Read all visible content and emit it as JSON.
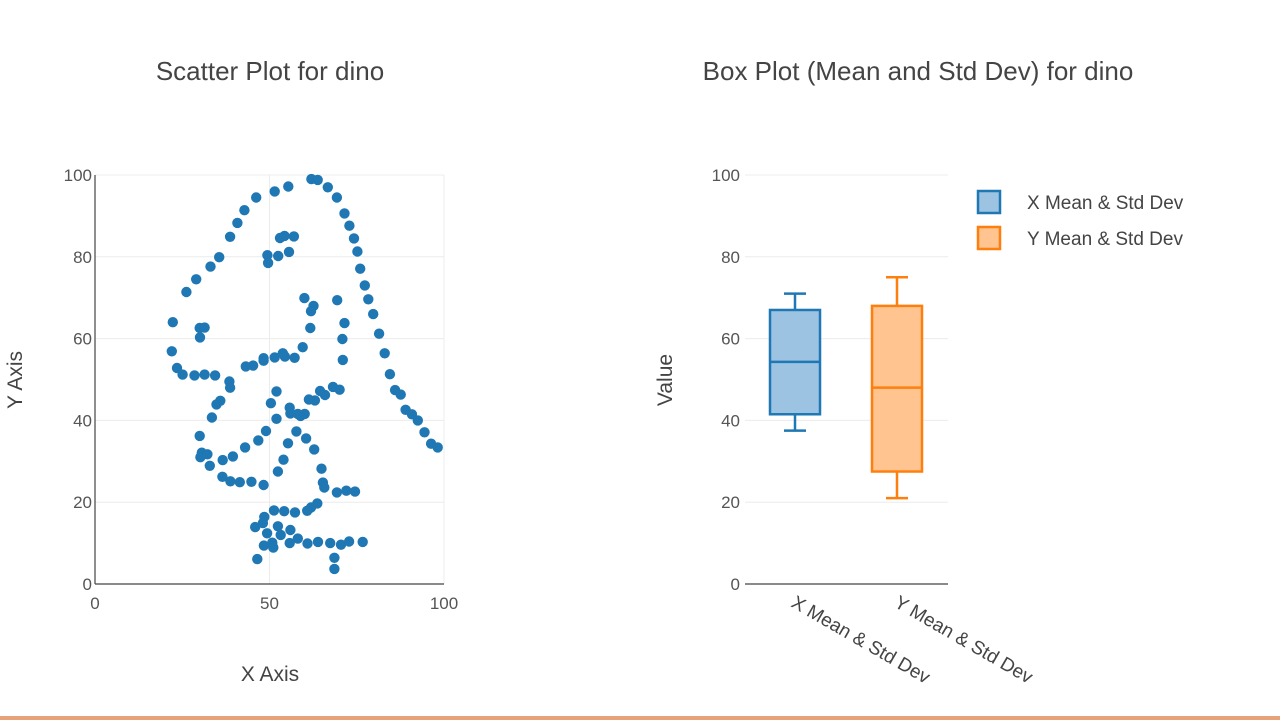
{
  "chart_data": [
    {
      "type": "scatter",
      "title": "Scatter Plot for dino",
      "xlabel": "X Axis",
      "ylabel": "Y Axis",
      "xlim": [
        0,
        100
      ],
      "ylim": [
        0,
        100
      ],
      "xticks": [
        "0",
        "50",
        "100"
      ],
      "yticks": [
        "0",
        "20",
        "40",
        "60",
        "80",
        "100"
      ],
      "grid": true,
      "color": "#1f77b4",
      "points": [
        [
          55.4,
          97.2
        ],
        [
          51.5,
          96.0
        ],
        [
          46.2,
          94.5
        ],
        [
          42.8,
          91.4
        ],
        [
          40.8,
          88.3
        ],
        [
          38.7,
          84.9
        ],
        [
          35.6,
          79.9
        ],
        [
          33.1,
          77.6
        ],
        [
          29.0,
          74.5
        ],
        [
          26.2,
          71.4
        ],
        [
          22.3,
          64.0
        ],
        [
          22.0,
          56.9
        ],
        [
          23.5,
          52.8
        ],
        [
          25.1,
          51.2
        ],
        [
          28.5,
          51.0
        ],
        [
          31.4,
          51.2
        ],
        [
          34.4,
          51.0
        ],
        [
          38.5,
          49.5
        ],
        [
          45.3,
          53.4
        ],
        [
          48.3,
          54.6
        ],
        [
          51.5,
          55.4
        ],
        [
          54.4,
          55.6
        ],
        [
          57.2,
          55.3
        ],
        [
          59.5,
          57.9
        ],
        [
          61.7,
          62.6
        ],
        [
          62.6,
          68.0
        ],
        [
          69.4,
          69.4
        ],
        [
          71.5,
          63.8
        ],
        [
          71.0,
          54.8
        ],
        [
          68.2,
          48.2
        ],
        [
          65.9,
          46.2
        ],
        [
          63.0,
          44.9
        ],
        [
          60.1,
          41.6
        ],
        [
          57.7,
          37.3
        ],
        [
          55.3,
          34.4
        ],
        [
          54.0,
          30.4
        ],
        [
          52.4,
          27.5
        ],
        [
          48.3,
          24.2
        ],
        [
          44.8,
          25.0
        ],
        [
          41.5,
          24.9
        ],
        [
          38.8,
          25.1
        ],
        [
          36.5,
          26.2
        ],
        [
          32.9,
          28.9
        ],
        [
          30.6,
          32.1
        ],
        [
          30.0,
          36.2
        ],
        [
          33.5,
          40.7
        ],
        [
          35.9,
          44.8
        ],
        [
          38.7,
          48.0
        ],
        [
          43.2,
          53.2
        ],
        [
          52.5,
          80.2
        ],
        [
          55.6,
          81.2
        ],
        [
          53.0,
          84.6
        ],
        [
          57.0,
          85.0
        ],
        [
          54.3,
          85.1
        ],
        [
          49.4,
          80.4
        ],
        [
          49.6,
          78.5
        ],
        [
          30.0,
          62.6
        ],
        [
          30.1,
          60.3
        ],
        [
          31.4,
          62.7
        ],
        [
          30.2,
          31.0
        ],
        [
          32.2,
          31.7
        ],
        [
          36.6,
          30.3
        ],
        [
          39.5,
          31.2
        ],
        [
          43.0,
          33.4
        ],
        [
          46.8,
          35.1
        ],
        [
          49.0,
          37.4
        ],
        [
          52.0,
          40.4
        ],
        [
          55.8,
          43.1
        ],
        [
          56.0,
          41.7
        ],
        [
          58.9,
          41.1
        ],
        [
          60.5,
          35.6
        ],
        [
          62.8,
          32.9
        ],
        [
          64.9,
          28.2
        ],
        [
          65.3,
          24.8
        ],
        [
          65.7,
          23.6
        ],
        [
          69.3,
          22.4
        ],
        [
          72.0,
          22.8
        ],
        [
          74.5,
          22.6
        ],
        [
          63.7,
          19.7
        ],
        [
          61.9,
          18.7
        ],
        [
          60.8,
          17.9
        ],
        [
          57.3,
          17.5
        ],
        [
          54.2,
          17.8
        ],
        [
          51.3,
          18.0
        ],
        [
          48.5,
          16.4
        ],
        [
          45.9,
          13.9
        ],
        [
          48.1,
          14.9
        ],
        [
          52.4,
          14.1
        ],
        [
          56.0,
          13.2
        ],
        [
          58.1,
          11.1
        ],
        [
          60.9,
          9.9
        ],
        [
          63.9,
          10.3
        ],
        [
          67.4,
          10.0
        ],
        [
          70.5,
          9.6
        ],
        [
          72.8,
          10.4
        ],
        [
          76.7,
          10.3
        ],
        [
          68.6,
          6.4
        ],
        [
          68.6,
          3.7
        ],
        [
          50.8,
          10.1
        ],
        [
          48.4,
          9.4
        ],
        [
          46.5,
          6.1
        ],
        [
          53.2,
          12.0
        ],
        [
          55.8,
          10.0
        ],
        [
          51.1,
          8.9
        ],
        [
          49.3,
          12.4
        ],
        [
          58.1,
          41.6
        ],
        [
          61.3,
          45.1
        ],
        [
          64.5,
          47.2
        ],
        [
          70.1,
          47.5
        ],
        [
          70.9,
          59.9
        ],
        [
          62.0,
          99.0
        ],
        [
          63.8,
          98.8
        ],
        [
          66.7,
          97.0
        ],
        [
          69.3,
          94.5
        ],
        [
          71.5,
          90.6
        ],
        [
          72.9,
          87.6
        ],
        [
          74.2,
          84.5
        ],
        [
          75.2,
          81.3
        ],
        [
          76.0,
          77.1
        ],
        [
          77.3,
          73.0
        ],
        [
          78.3,
          69.6
        ],
        [
          79.7,
          66.0
        ],
        [
          81.4,
          61.2
        ],
        [
          83.0,
          56.4
        ],
        [
          84.5,
          51.3
        ],
        [
          86.0,
          47.4
        ],
        [
          87.6,
          46.3
        ],
        [
          89.0,
          42.6
        ],
        [
          90.8,
          41.5
        ],
        [
          92.5,
          40.0
        ],
        [
          94.4,
          37.1
        ],
        [
          96.3,
          34.3
        ],
        [
          98.2,
          33.4
        ],
        [
          34.8,
          43.9
        ],
        [
          53.8,
          56.4
        ],
        [
          61.9,
          66.7
        ],
        [
          60.0,
          69.9
        ],
        [
          48.3,
          55.2
        ],
        [
          52.0,
          47.1
        ],
        [
          50.4,
          44.2
        ]
      ]
    },
    {
      "type": "box",
      "title": "Box Plot (Mean and Std Dev) for dino",
      "xlabel": "",
      "ylabel": "Value",
      "ylim": [
        0,
        100
      ],
      "yticks": [
        "0",
        "20",
        "40",
        "60",
        "80",
        "100"
      ],
      "grid": true,
      "legend_position": "top-right",
      "categories": [
        "X Mean & Std Dev",
        "Y Mean & Std Dev"
      ],
      "series": [
        {
          "name": "X Mean & Std Dev",
          "color": "#1f77b4",
          "fill": "#9dc3e3",
          "lower_whisker": 37.5,
          "q1": 41.5,
          "median": 54.3,
          "q3": 67.0,
          "upper_whisker": 71.0
        },
        {
          "name": "Y Mean & Std Dev",
          "color": "#ff7f0e",
          "fill": "#ffc48f",
          "lower_whisker": 21.0,
          "q1": 27.5,
          "median": 48.0,
          "q3": 68.0,
          "upper_whisker": 75.0
        }
      ]
    }
  ]
}
